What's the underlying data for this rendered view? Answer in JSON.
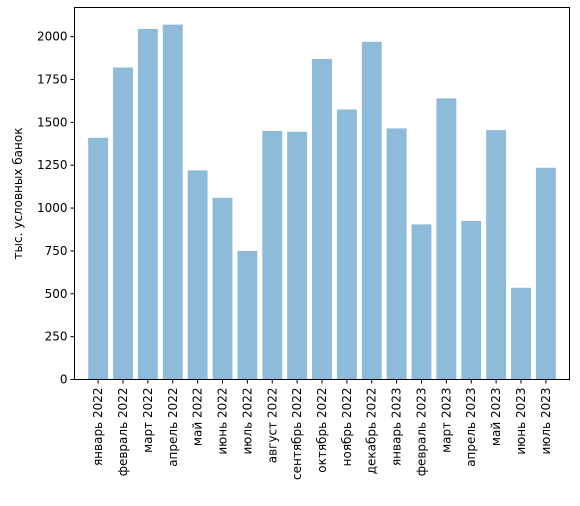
{
  "chart_data": {
    "type": "bar",
    "title": "",
    "xlabel": "",
    "ylabel": "тыс. условных банок",
    "ylim": [
      0,
      2170
    ],
    "yticks": [
      0,
      250,
      500,
      750,
      1000,
      1250,
      1500,
      1750,
      2000
    ],
    "grid": false,
    "bar_color": "#8fbbda",
    "categories": [
      "январь 2022",
      "февраль 2022",
      "март 2022",
      "апрель 2022",
      "май 2022",
      "июнь 2022",
      "июль 2022",
      "август 2022",
      "сентябрь 2022",
      "октябрь 2022",
      "ноябрь 2022",
      "декабрь 2022",
      "январь 2023",
      "февраль 2023",
      "март 2023",
      "апрель 2023",
      "май 2023",
      "июнь 2023",
      "июль 2023"
    ],
    "values": [
      1410,
      1820,
      2045,
      2070,
      1220,
      1060,
      750,
      1450,
      1445,
      1870,
      1575,
      1970,
      1465,
      905,
      1640,
      925,
      1455,
      535,
      1235
    ]
  }
}
